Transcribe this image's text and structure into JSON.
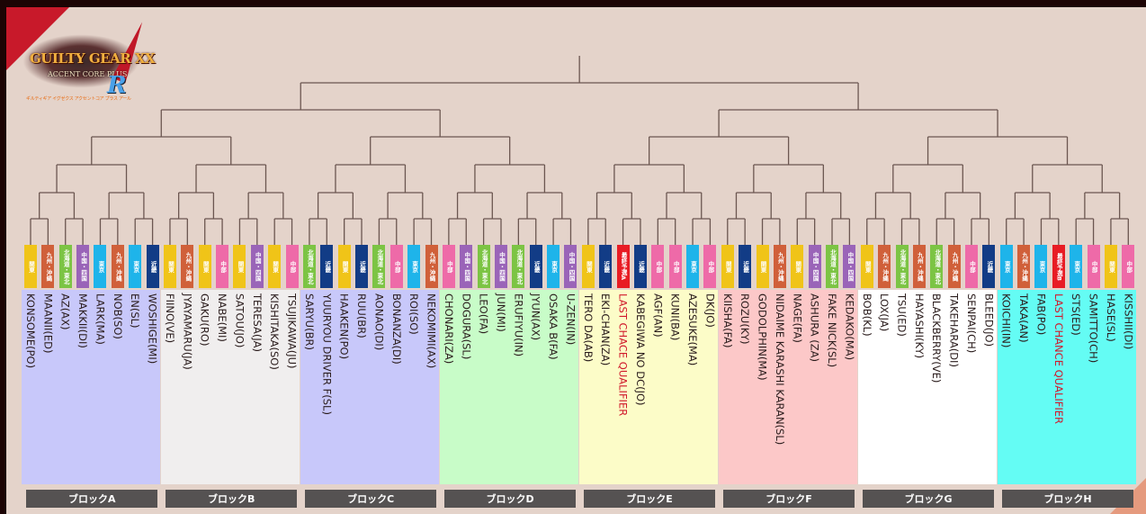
{
  "logo": {
    "title": "GUILTY GEAR XX",
    "subtitle": "ACCENT CORE PLUS",
    "suffix": "R",
    "tagline": "ギルティギア イグゼクス アクセントコア プラス アール"
  },
  "region_colors": {
    "関東": "#f0c418",
    "九州・沖縄": "#d0603a",
    "北海道・東北": "#7cc444",
    "中国・四国": "#9a64b8",
    "東京": "#1eb4ea",
    "近畿": "#123c86",
    "中部": "#ee6aa8",
    "最終予選A": "#e81c24",
    "最終予選B": "#e81c24"
  },
  "blocks": [
    {
      "label": "ブロックA",
      "color": "#c8c8fa",
      "players": [
        {
          "name": "KONSOME(PO)",
          "region": "関東"
        },
        {
          "name": "MAANII(ED)",
          "region": "九州・沖縄"
        },
        {
          "name": "AZ(AX)",
          "region": "北海道・東北"
        },
        {
          "name": "MAKKII(DI)",
          "region": "中国・四国"
        },
        {
          "name": "LARK(MA)",
          "region": "東京"
        },
        {
          "name": "NOB(SO)",
          "region": "九州・沖縄"
        },
        {
          "name": "EN(SL)",
          "region": "東京"
        },
        {
          "name": "WOSHIGE(MI)",
          "region": "近畿"
        }
      ]
    },
    {
      "label": "ブロックB",
      "color": "#f0eeee",
      "players": [
        {
          "name": "FIINO(VE)",
          "region": "関東"
        },
        {
          "name": "JYAYAMARU(JA)",
          "region": "九州・沖縄"
        },
        {
          "name": "GAKU(RO)",
          "region": "関東"
        },
        {
          "name": "NABE(MI)",
          "region": "中部"
        },
        {
          "name": "SATOU(JO)",
          "region": "関東"
        },
        {
          "name": "TERESA(JA)",
          "region": "中国・四国"
        },
        {
          "name": "KISHITAKA(SO)",
          "region": "関東"
        },
        {
          "name": "TSUJIKAWA(JU)",
          "region": "中部"
        }
      ]
    },
    {
      "label": "ブロックC",
      "color": "#c8c8fa",
      "players": [
        {
          "name": "SARYU(BR)",
          "region": "北海道・東北"
        },
        {
          "name": "YUURYOU DRIVER F(SL)",
          "region": "近畿"
        },
        {
          "name": "HAAKEN(PO)",
          "region": "関東"
        },
        {
          "name": "RUU(BR)",
          "region": "近畿"
        },
        {
          "name": "AONAO(DI)",
          "region": "北海道・東北"
        },
        {
          "name": "BONANZA(DI)",
          "region": "中部"
        },
        {
          "name": "ROI(SO)",
          "region": "東京"
        },
        {
          "name": "NEKOMIMI(AX)",
          "region": "九州・沖縄"
        }
      ]
    },
    {
      "label": "ブロックD",
      "color": "#c8fcc8",
      "players": [
        {
          "name": "CHONARI(ZA)",
          "region": "中部"
        },
        {
          "name": "DOGURA(SL)",
          "region": "中国・四国"
        },
        {
          "name": "LEO(FA)",
          "region": "北海道・東北"
        },
        {
          "name": "JUN(MI)",
          "region": "中国・四国"
        },
        {
          "name": "ERUFIYU(IN)",
          "region": "北海道・東北"
        },
        {
          "name": "JYUN(AX)",
          "region": "近畿"
        },
        {
          "name": "OSAKA B(FA)",
          "region": "東京"
        },
        {
          "name": "U-ZEN(IN)",
          "region": "中国・四国"
        }
      ]
    },
    {
      "label": "ブロックE",
      "color": "#fcfcc8",
      "players": [
        {
          "name": "TERO DA(AB)",
          "region": "関東"
        },
        {
          "name": "EKI-CHAN(ZA)",
          "region": "近畿"
        },
        {
          "name": "LAST CHACE QUALIFIER",
          "region": "最終予選A",
          "highlight": true
        },
        {
          "name": "KABEGIWA NO DC(JO)",
          "region": "近畿"
        },
        {
          "name": "AGF(AN)",
          "region": "中部"
        },
        {
          "name": "KUNI(BA)",
          "region": "中部"
        },
        {
          "name": "AZESUKE(MA)",
          "region": "東京"
        },
        {
          "name": "DK(JO)",
          "region": "中部"
        }
      ]
    },
    {
      "label": "ブロックF",
      "color": "#fcc8c8",
      "players": [
        {
          "name": "KIISHA(FA)",
          "region": "関東"
        },
        {
          "name": "ROZU(KY)",
          "region": "近畿"
        },
        {
          "name": "GODOLPHIN(MA)",
          "region": "関東"
        },
        {
          "name": "NIDAIME KARASHI KARAN(SL)",
          "region": "九州・沖縄"
        },
        {
          "name": "NAGE(FA)",
          "region": "関東"
        },
        {
          "name": "ASHURA (ZA)",
          "region": "中国・四国"
        },
        {
          "name": "FAKE NICK(SL)",
          "region": "北海道・東北"
        },
        {
          "name": "KEDAKO(MA)",
          "region": "中国・四国"
        }
      ]
    },
    {
      "label": "ブロックG",
      "color": "#ffffff",
      "players": [
        {
          "name": "BOB(KL)",
          "region": "関東"
        },
        {
          "name": "LOX(JA)",
          "region": "九州・沖縄"
        },
        {
          "name": "TSU(ED)",
          "region": "北海道・東北"
        },
        {
          "name": "HAYASHI(KY)",
          "region": "九州・沖縄"
        },
        {
          "name": "BLACKBERRY(VE)",
          "region": "北海道・東北"
        },
        {
          "name": "TAKEHARA(DI)",
          "region": "九州・沖縄"
        },
        {
          "name": "SENPAI(CH)",
          "region": "中部"
        },
        {
          "name": "BLEED(JO)",
          "region": "近畿"
        }
      ]
    },
    {
      "label": "ブロックH",
      "color": "#64fcf4",
      "players": [
        {
          "name": "KOICHI(IN)",
          "region": "東京"
        },
        {
          "name": "TAKA(AN)",
          "region": "九州・沖縄"
        },
        {
          "name": "FAB(PO)",
          "region": "東京"
        },
        {
          "name": "LAST CHANCE QUALIFIER",
          "region": "最終予選B",
          "highlight": true
        },
        {
          "name": "STS(ED)",
          "region": "東京"
        },
        {
          "name": "SAMITTO(CH)",
          "region": "中部"
        },
        {
          "name": "HASE(SL)",
          "region": "関東"
        },
        {
          "name": "KISSHII(DI)",
          "region": "中部"
        }
      ]
    }
  ]
}
